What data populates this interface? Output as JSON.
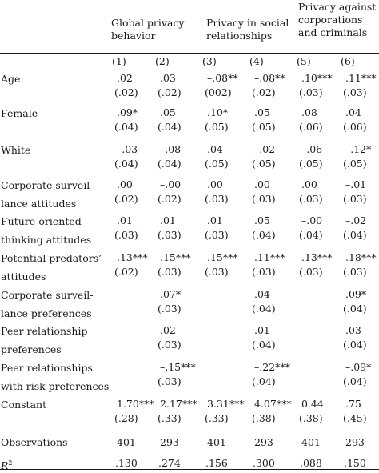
{
  "headers": {
    "global": [
      "Global privacy",
      "behavior"
    ],
    "social": [
      "Privacy in social",
      "relationships"
    ],
    "corp": [
      "Privacy against",
      "corporations",
      "and criminals"
    ]
  },
  "model_numbers": [
    "(1)",
    "(2)",
    "(3)",
    "(4)",
    "(5)",
    "(6)"
  ],
  "rows": [
    {
      "label": [
        "Age"
      ],
      "coef": [
        ".02",
        ".03",
        "–.08**",
        "–.08**",
        ".10***",
        ".11***"
      ],
      "se": [
        "(.02)",
        "(.02)",
        "(002)",
        "(.02)",
        "(.03)",
        "(.03)"
      ]
    },
    {
      "label": [
        "Female"
      ],
      "coef": [
        ".09*",
        ".05",
        ".10*",
        ".05",
        ".08",
        ".04"
      ],
      "se": [
        "(.04)",
        "(.04)",
        "(.05)",
        "(.05)",
        "(.06)",
        "(.06)"
      ]
    },
    {
      "label": [
        "White"
      ],
      "coef": [
        "–.03",
        "–.08",
        ".04",
        "–.02",
        "–.06",
        "–.12*"
      ],
      "se": [
        "(.04)",
        "(.04)",
        "(.05)",
        "(.05)",
        "(.05)",
        "(.05)"
      ]
    },
    {
      "label": [
        "Corporate surveil-",
        "lance attitudes"
      ],
      "coef": [
        ".00",
        "–.00",
        ".00",
        ".00",
        ".00",
        "–.01"
      ],
      "se": [
        "(.02)",
        "(.02)",
        "(.03)",
        "(.03)",
        "(.03)",
        "(.03)"
      ]
    },
    {
      "label": [
        "Future-oriented",
        "thinking attitudes"
      ],
      "coef": [
        ".01",
        ".01",
        ".01",
        ".05",
        "–.00",
        "–.02"
      ],
      "se": [
        "(.03)",
        "(.03)",
        "(.03)",
        "(.04)",
        "(.04)",
        "(.04)"
      ]
    },
    {
      "label": [
        "Potential predators’",
        "attitudes"
      ],
      "coef": [
        ".13***",
        ".15***",
        ".15***",
        ".11***",
        ".13***",
        ".18***"
      ],
      "se": [
        "(.02)",
        "(.03)",
        "(.03)",
        "(.03)",
        "(.03)",
        "(.03)"
      ]
    },
    {
      "label": [
        "Corporate surveil-",
        "lance preferences"
      ],
      "coef": [
        "",
        ".07*",
        "",
        ".04",
        "",
        ".09*"
      ],
      "se": [
        "",
        "(.03)",
        "",
        "(.04)",
        "",
        "(.04)"
      ]
    },
    {
      "label": [
        "Peer relationship",
        "preferences"
      ],
      "coef": [
        "",
        ".02",
        "",
        ".01",
        "",
        ".03"
      ],
      "se": [
        "",
        "(.03)",
        "",
        "(.04)",
        "",
        "(.04)"
      ]
    },
    {
      "label": [
        "Peer relationships",
        "with risk preferences"
      ],
      "coef": [
        "",
        "–.15***",
        "",
        "–.22***",
        "",
        "–.09*"
      ],
      "se": [
        "",
        "(.03)",
        "",
        "(.04)",
        "",
        "(.04)"
      ]
    },
    {
      "label": [
        "Constant"
      ],
      "coef": [
        "1.70***",
        "2.17***",
        "3.31***",
        "4.07***",
        "0.44",
        ".75"
      ],
      "se": [
        "(.28)",
        "(.33)",
        "(.33)",
        "(.38)",
        "(.38)",
        "(.45)"
      ]
    }
  ],
  "observations": {
    "label": "Observations",
    "values": [
      "401",
      "293",
      "401",
      "293",
      "401",
      "293"
    ]
  },
  "r2": {
    "label_main": "R",
    "label_sup": "2",
    "values": [
      ".130",
      ".274",
      ".156",
      ".300",
      ".088",
      ".150"
    ]
  }
}
